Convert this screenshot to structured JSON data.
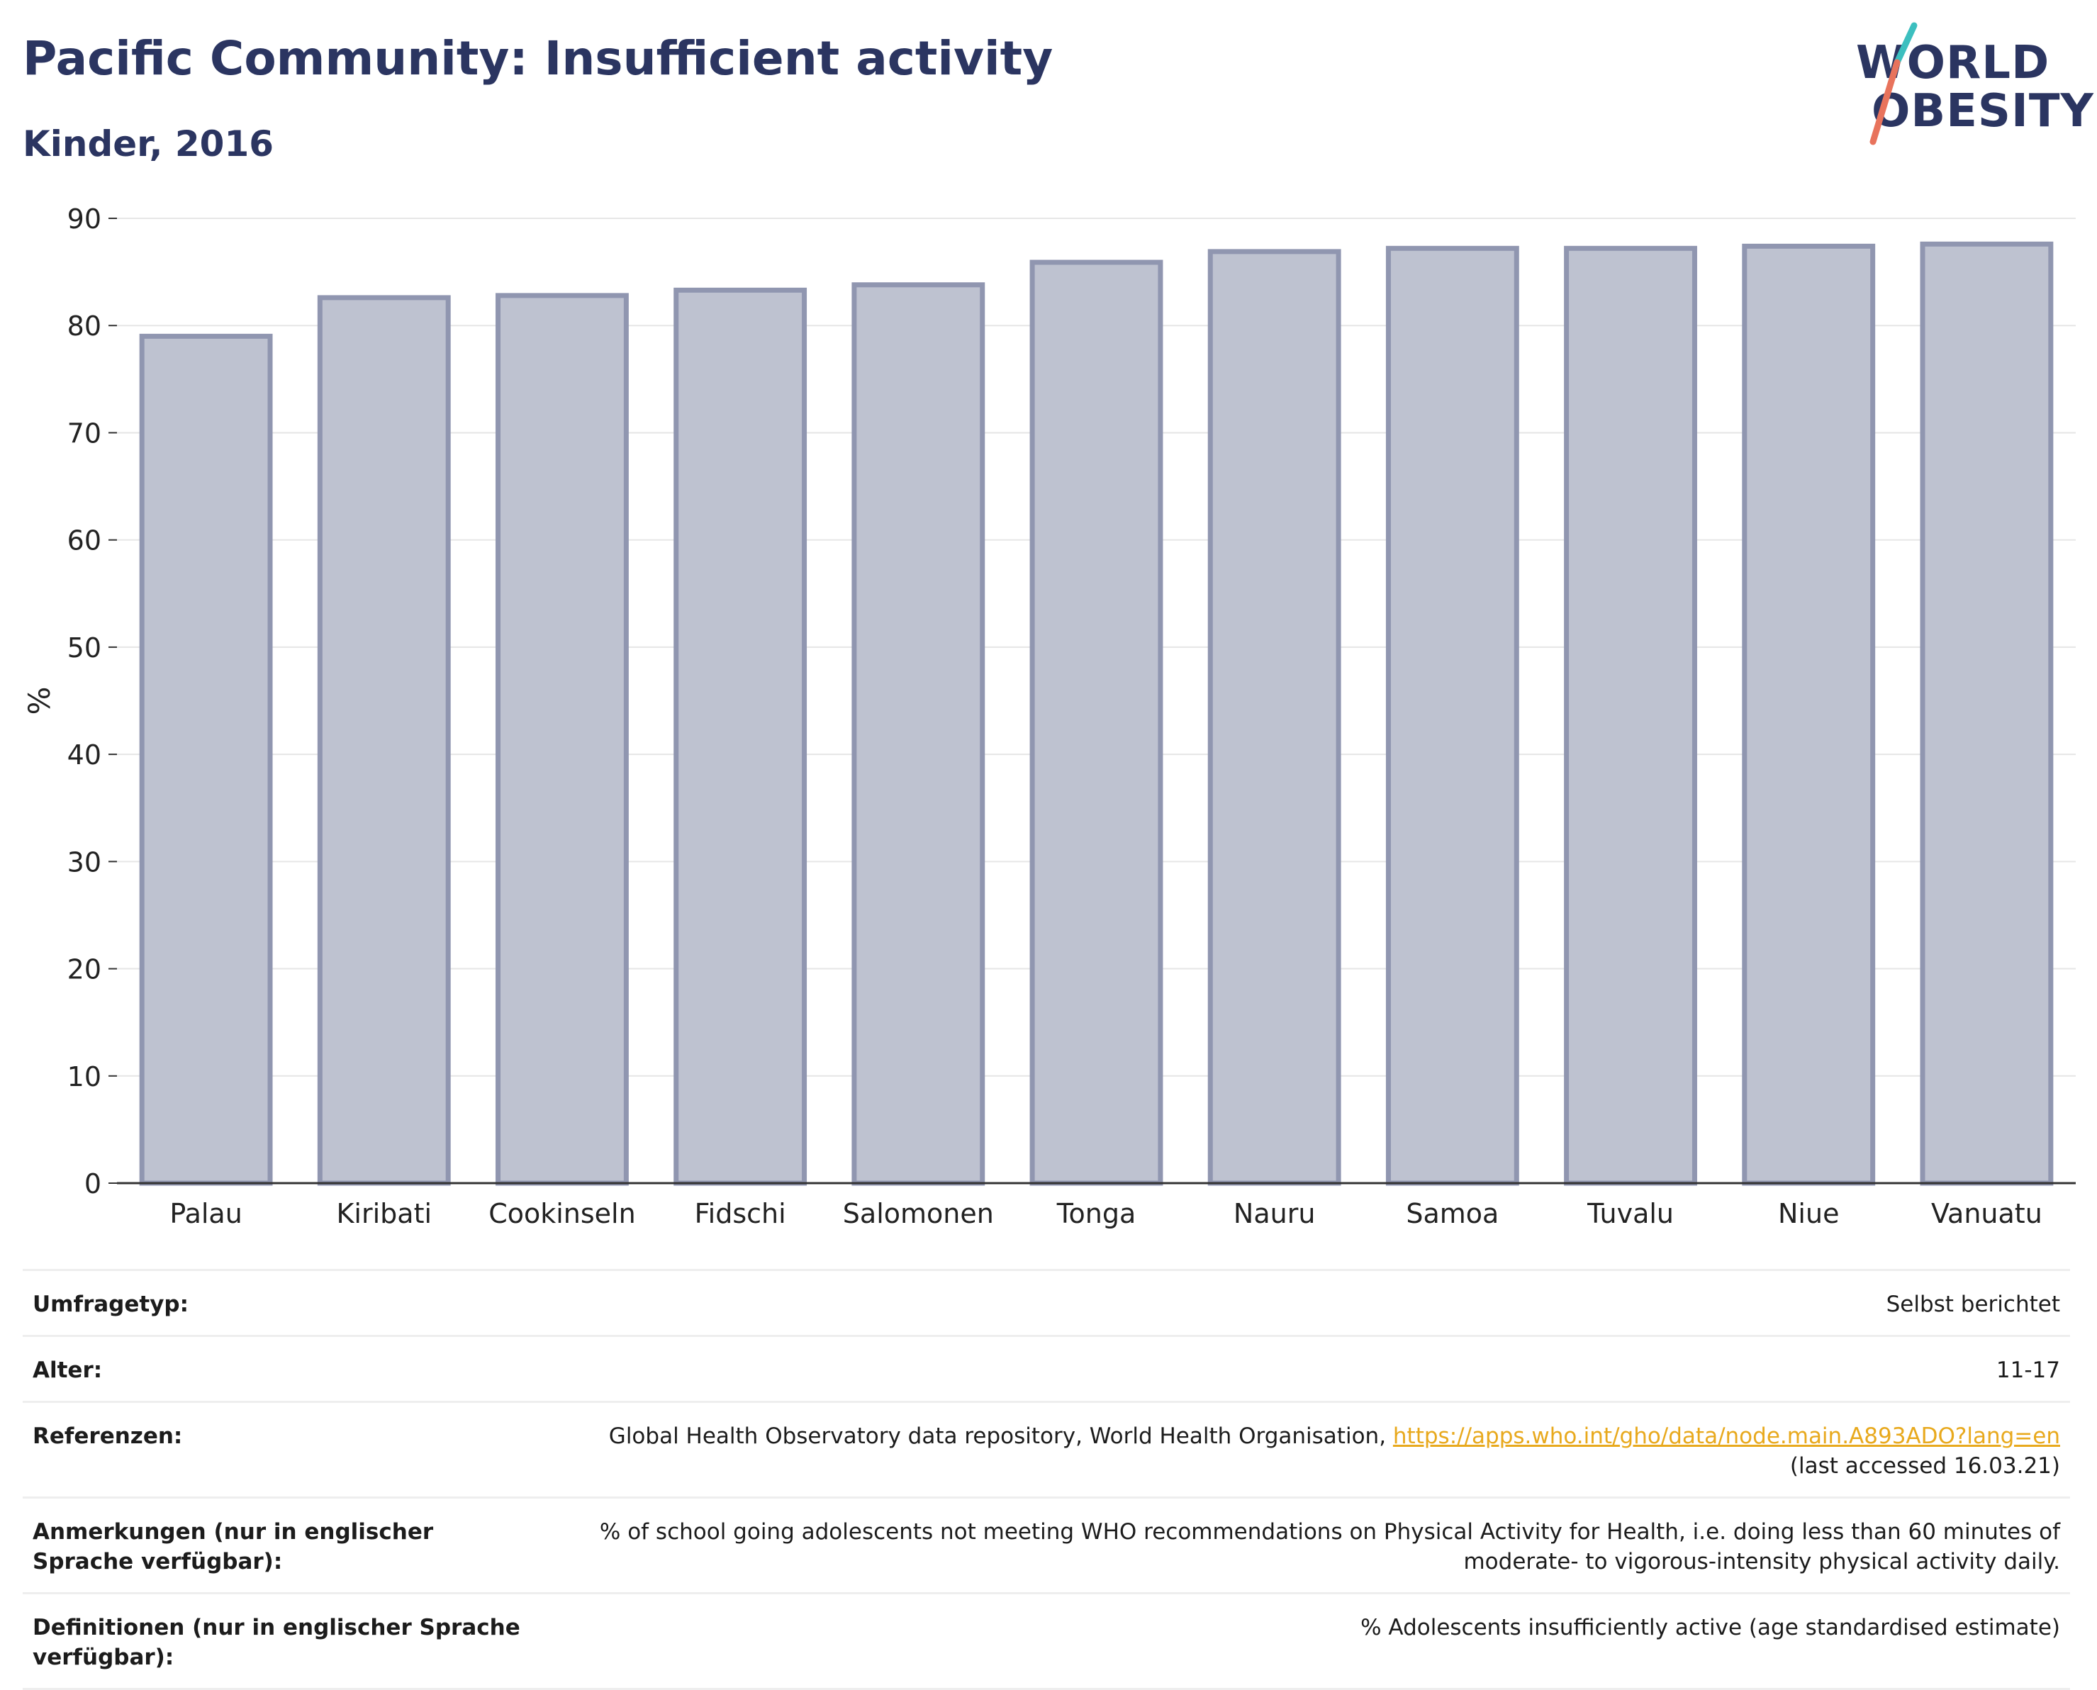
{
  "title": "Pacific Community: Insufficient activity",
  "subtitle": "Kinder, 2016",
  "logo": {
    "line1": "WORLD",
    "line2": "OBESITY",
    "slash_colors": [
      "#3cbfbf",
      "#e8735c"
    ]
  },
  "colors": {
    "bar_fill": "#bec2d0",
    "bar_stroke": "#9096b0",
    "text_dark": "#2b3561",
    "link": "#e8a91d"
  },
  "chart_data": {
    "type": "bar",
    "title": "Pacific Community: Insufficient activity",
    "subtitle": "Kinder, 2016",
    "xlabel": "",
    "ylabel": "%",
    "ylim": [
      0,
      90
    ],
    "yticks": [
      0,
      10,
      20,
      30,
      40,
      50,
      60,
      70,
      80,
      90
    ],
    "grid": true,
    "categories": [
      "Palau",
      "Kiribati",
      "Cookinseln",
      "Fidschi",
      "Salomonen",
      "Tonga",
      "Nauru",
      "Samoa",
      "Tuvalu",
      "Niue",
      "Vanuatu"
    ],
    "values": [
      79.0,
      82.6,
      82.8,
      83.3,
      83.8,
      85.9,
      86.9,
      87.2,
      87.2,
      87.4,
      87.6
    ]
  },
  "footer": {
    "rows": [
      {
        "label": "Umfragetyp:",
        "value": "Selbst berichtet"
      },
      {
        "label": "Alter:",
        "value": "11-17"
      },
      {
        "label": "Referenzen:",
        "value_prefix": "Global Health Observatory data repository, World Health Organisation, ",
        "link": "https://apps.who.int/gho/data/node.main.A893ADO?lang=en",
        "value_suffix": "(last accessed 16.03.21)"
      },
      {
        "label": "Anmerkungen (nur in englischer Sprache verfügbar):",
        "value": "% of school going adolescents not meeting WHO recommendations on Physical Activity for Health, i.e. doing less than 60 minutes of moderate- to vigorous-intensity physical activity daily."
      },
      {
        "label": "Definitionen (nur in englischer Sprache verfügbar):",
        "value": "% Adolescents insufficiently active (age standardised estimate)"
      }
    ]
  }
}
